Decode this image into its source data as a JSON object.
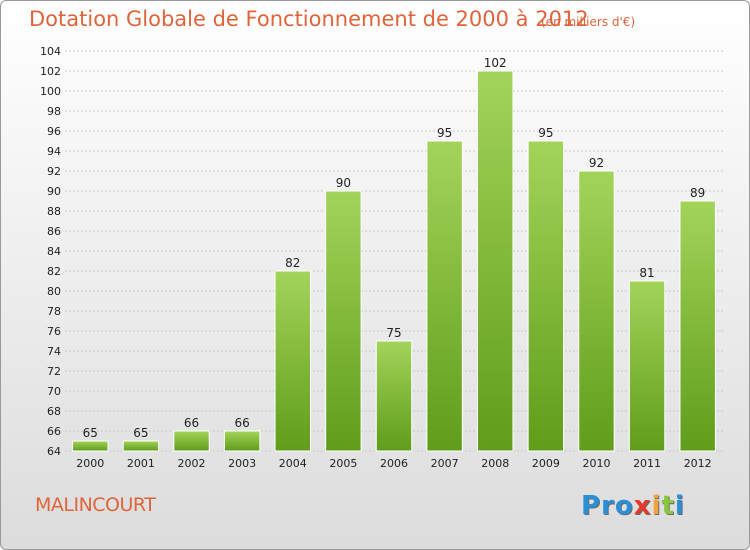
{
  "title": "Dotation Globale de Fonctionnement de 2000 à 2012",
  "unit_note": "(en milliers d'€)",
  "town": "MALINCOURT",
  "logo": [
    "Pro",
    "x",
    "i",
    "t",
    "i"
  ],
  "colors": {
    "title": "#e0643a",
    "bar_light": "#a3d45a",
    "bar_dark": "#5f9d1a",
    "bar_border": "#ffffff",
    "grid": "#c9c9c9",
    "axis_text": "#222222"
  },
  "chart_data": {
    "type": "bar",
    "title": "Dotation Globale de Fonctionnement de 2000 à 2012",
    "subtitle": "(en milliers d'€)",
    "xlabel": "",
    "ylabel": "",
    "categories": [
      "2000",
      "2001",
      "2002",
      "2003",
      "2004",
      "2005",
      "2006",
      "2007",
      "2008",
      "2009",
      "2010",
      "2011",
      "2012"
    ],
    "values": [
      65,
      65,
      66,
      66,
      82,
      90,
      75,
      95,
      102,
      95,
      92,
      81,
      89
    ],
    "ylim": [
      64,
      104
    ],
    "yticks": [
      64,
      66,
      68,
      70,
      72,
      74,
      76,
      78,
      80,
      82,
      84,
      86,
      88,
      90,
      92,
      94,
      96,
      98,
      100,
      102,
      104
    ],
    "grid": "horizontal",
    "data_labels": true
  }
}
